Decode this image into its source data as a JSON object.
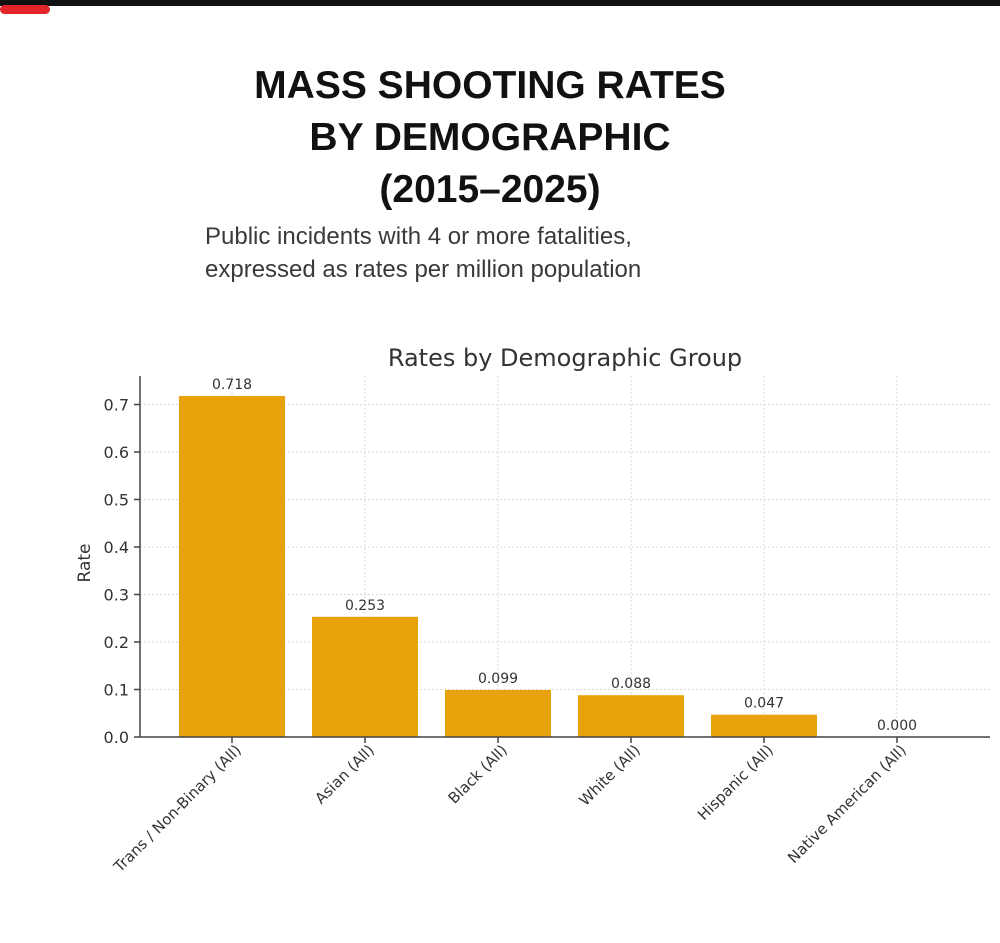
{
  "header": {
    "title_lines": [
      "MASS SHOOTING RATES",
      "BY DEMOGRAPHIC",
      "(2015–2025)"
    ],
    "subtitle_lines": [
      "Public incidents with 4 or more fatalities,",
      "expressed as rates per million population"
    ]
  },
  "colors": {
    "bar": "#E8A20C",
    "axis": "#444444",
    "grid": "#d9d9d9",
    "text": "#333333",
    "accent_pill": "#e3242b"
  },
  "chart_data": {
    "type": "bar",
    "title": "Rates by Demographic Group",
    "xlabel": "",
    "ylabel": "Rate",
    "categories": [
      "Trans / Non-Binary (All)",
      "Asian (All)",
      "Black (All)",
      "White (All)",
      "Hispanic (All)",
      "Native American (All)"
    ],
    "values": [
      0.718,
      0.253,
      0.099,
      0.088,
      0.047,
      0.0
    ],
    "data_labels": [
      "0.718",
      "0.253",
      "0.099",
      "0.088",
      "0.047",
      "0.000"
    ],
    "yticks": [
      0.0,
      0.1,
      0.2,
      0.3,
      0.4,
      0.5,
      0.6,
      0.7
    ],
    "ytick_labels": [
      "0.0",
      "0.1",
      "0.2",
      "0.3",
      "0.4",
      "0.5",
      "0.6",
      "0.7"
    ],
    "ylim": [
      0,
      0.76
    ],
    "grid": true,
    "legend": "none"
  }
}
